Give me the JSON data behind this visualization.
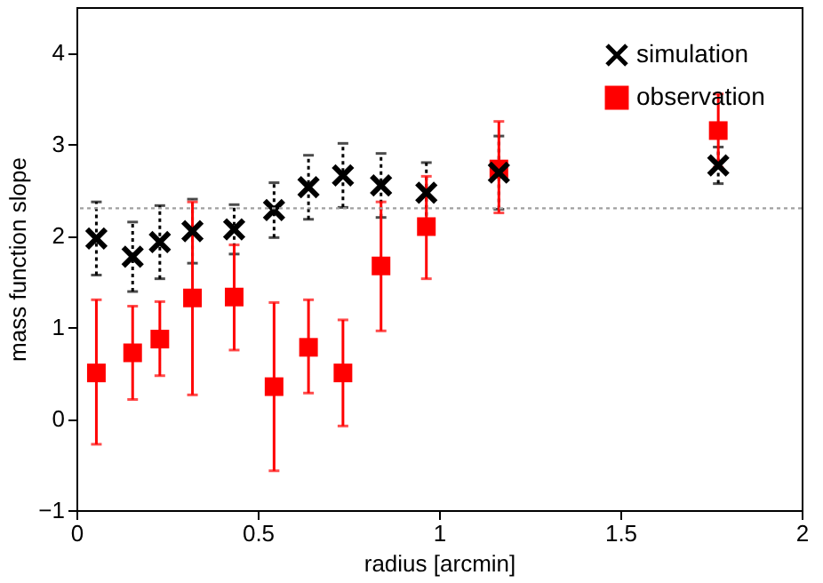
{
  "chart_data": {
    "type": "scatter",
    "xlabel": "radius [arcmin]",
    "ylabel": "mass function slope",
    "xlim": [
      0,
      2
    ],
    "xticks": [
      0,
      0.5,
      1,
      1.5,
      2
    ],
    "ylim": [
      -1,
      4.5
    ],
    "yticks": [
      -1,
      0,
      1,
      2,
      3,
      4
    ],
    "grid": false,
    "legend": "top right",
    "series": [
      {
        "name": "simulation",
        "color": "#000000",
        "marker": "cross",
        "line_style": "dotted",
        "x": [
          0.055,
          0.155,
          0.23,
          0.32,
          0.435,
          0.545,
          0.64,
          0.735,
          0.84,
          0.965,
          1.165,
          1.77
        ],
        "values": [
          1.97,
          1.77,
          1.93,
          2.05,
          2.07,
          2.28,
          2.53,
          2.66,
          2.55,
          2.47,
          2.69,
          2.77
        ],
        "errors": [
          0.4,
          0.38,
          0.4,
          0.35,
          0.27,
          0.3,
          0.35,
          0.35,
          0.35,
          0.33,
          0.4,
          0.2
        ]
      },
      {
        "name": "observation",
        "color": "#ff0000",
        "marker": "square",
        "line_style": "solid",
        "x": [
          0.055,
          0.155,
          0.23,
          0.32,
          0.435,
          0.545,
          0.64,
          0.735,
          0.84,
          0.965,
          1.165,
          1.77
        ],
        "values": [
          0.5,
          0.72,
          0.87,
          1.32,
          1.33,
          0.35,
          0.78,
          0.5,
          1.67,
          2.1,
          2.73,
          3.15
        ],
        "errors": [
          [
            -0.28,
            1.3
          ],
          [
            0.21,
            1.23
          ],
          [
            0.47,
            1.28
          ],
          [
            0.26,
            2.37
          ],
          [
            0.75,
            1.9
          ],
          [
            -0.57,
            1.27
          ],
          [
            0.28,
            1.3
          ],
          [
            -0.08,
            1.08
          ],
          [
            0.96,
            2.37
          ],
          [
            1.53,
            2.65
          ],
          [
            2.25,
            3.25
          ],
          [
            2.75,
            3.55
          ]
        ]
      }
    ],
    "ref_lines": [
      {
        "axis": "y",
        "value": 2.3,
        "color": "#a0a0a0",
        "line_style": "dotted"
      }
    ]
  }
}
